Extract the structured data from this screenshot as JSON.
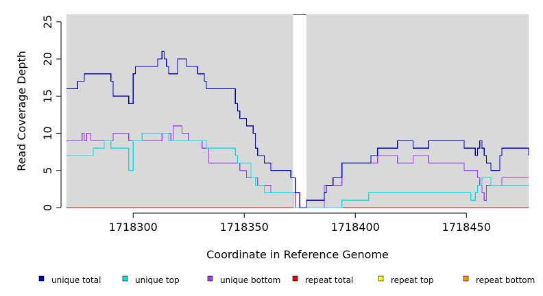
{
  "chart_data": {
    "type": "line",
    "xlabel": "Coordinate in Reference Genome",
    "ylabel": "Read Coverage Depth",
    "xlim": [
      1718270,
      1718478
    ],
    "ylim": [
      0,
      26
    ],
    "x_ticks": [
      {
        "value": 1718300,
        "label": "1718300"
      },
      {
        "value": 1718350,
        "label": "1718350"
      },
      {
        "value": 1718400,
        "label": "1718400"
      },
      {
        "value": 1718450,
        "label": "1718450"
      }
    ],
    "y_ticks": [
      {
        "value": 0,
        "label": "0"
      },
      {
        "value": 5,
        "label": "5"
      },
      {
        "value": 10,
        "label": "10"
      },
      {
        "value": 15,
        "label": "15"
      },
      {
        "value": 20,
        "label": "20"
      },
      {
        "value": 25,
        "label": "25"
      }
    ],
    "background_color": "#d9d9d9",
    "gap_color": "#ffffff",
    "gaps": [
      [
        1718372,
        1718378
      ]
    ],
    "grid": false,
    "legend_position": "bottom",
    "series": [
      {
        "name": "unique total",
        "color": "#0000cc",
        "x": [
          1718270,
          1718275,
          1718278,
          1718286,
          1718290,
          1718291,
          1718298,
          1718300,
          1718301,
          1718311,
          1718313,
          1718314,
          1718315,
          1718316,
          1718320,
          1718324,
          1718329,
          1718332,
          1718333,
          1718346,
          1718347,
          1718348,
          1718351,
          1718354,
          1718355,
          1718356,
          1718359,
          1718362,
          1718371,
          1718373,
          1718375,
          1718378,
          1718386,
          1718387,
          1718390,
          1718394,
          1718407,
          1718410,
          1718419,
          1718426,
          1718433,
          1718449,
          1718454,
          1718455,
          1718456,
          1718457,
          1718458,
          1718459,
          1718461,
          1718465,
          1718466,
          1718478
        ],
        "y": [
          16,
          17,
          18,
          18,
          17,
          15,
          14,
          18,
          19,
          20,
          21,
          20,
          19,
          18,
          20,
          19,
          18,
          17,
          16,
          14,
          13,
          12,
          11,
          10,
          8,
          7,
          6,
          5,
          4,
          2,
          0,
          1,
          2,
          3,
          4,
          6,
          7,
          8,
          9,
          8,
          9,
          8,
          7,
          8,
          9,
          8,
          7,
          6,
          5,
          7,
          8,
          7
        ]
      },
      {
        "name": "unique top",
        "color": "#00e5e5",
        "x": [
          1718270,
          1718277,
          1718282,
          1718287,
          1718290,
          1718298,
          1718300,
          1718304,
          1718316,
          1718333,
          1718346,
          1718347,
          1718353,
          1718355,
          1718359,
          1718365,
          1718372,
          1718373,
          1718394,
          1718406,
          1718419,
          1718451,
          1718452,
          1718454,
          1718455,
          1718457,
          1718461,
          1718478
        ],
        "y": [
          7,
          7,
          8,
          9,
          8,
          5,
          9,
          10,
          9,
          8,
          7,
          6,
          4,
          3,
          2,
          2,
          0,
          0,
          1,
          2,
          2,
          2,
          1,
          2,
          3,
          4,
          3,
          3
        ]
      },
      {
        "name": "unique bottom",
        "color": "#a040ff",
        "x": [
          1718270,
          1718277,
          1718278,
          1718279,
          1718281,
          1718290,
          1718291,
          1718298,
          1718302,
          1718313,
          1718317,
          1718318,
          1718322,
          1718325,
          1718331,
          1718334,
          1718345,
          1718348,
          1718351,
          1718356,
          1718362,
          1718373,
          1718386,
          1718394,
          1718410,
          1718419,
          1718426,
          1718433,
          1718449,
          1718455,
          1718456,
          1718457,
          1718458,
          1718459,
          1718462,
          1718466,
          1718478
        ],
        "y": [
          9,
          10,
          9,
          10,
          9,
          9,
          10,
          9,
          9,
          10,
          9,
          11,
          10,
          9,
          8,
          6,
          6,
          5,
          4,
          3,
          2,
          0,
          3,
          6,
          7,
          6,
          7,
          6,
          5,
          4,
          3,
          2,
          1,
          3,
          3,
          4,
          4
        ]
      },
      {
        "name": "repeat total",
        "color": "#ee0000",
        "x": [
          1718270,
          1718478
        ],
        "y": [
          0,
          0
        ]
      },
      {
        "name": "repeat top",
        "color": "#ffff00",
        "x": [
          1718270,
          1718478
        ],
        "y": [
          0,
          0
        ]
      },
      {
        "name": "repeat bottom",
        "color": "#ff9900",
        "x": [
          1718270,
          1718478
        ],
        "y": [
          0,
          0
        ]
      }
    ]
  }
}
